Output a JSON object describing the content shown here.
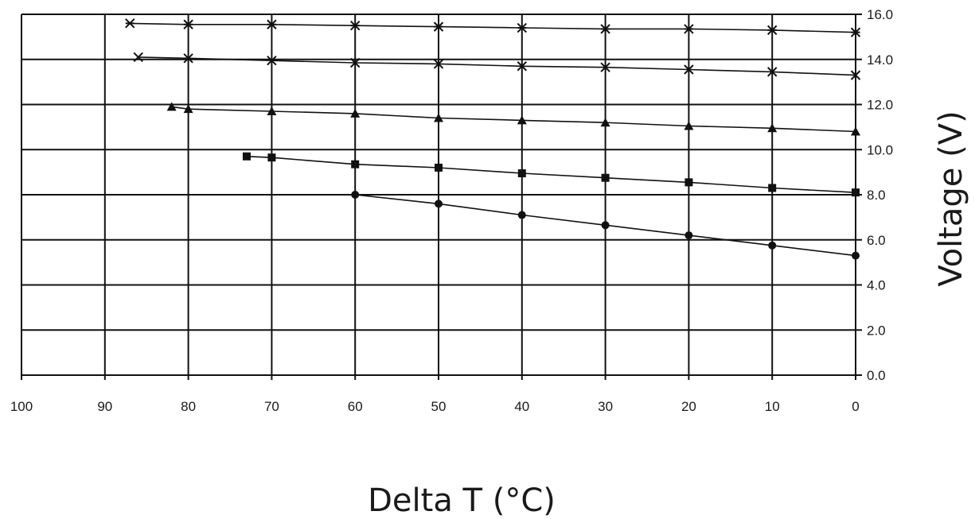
{
  "chart_data": {
    "type": "line",
    "xlabel": "Delta T (°C)",
    "ylabel": "Voltage (V)",
    "xlim": [
      100,
      0
    ],
    "ylim": [
      0,
      16
    ],
    "x_reversed": true,
    "y_axis_side": "right",
    "grid": true,
    "legend": "none",
    "x_ticks": [
      "100",
      "90",
      "80",
      "70",
      "60",
      "50",
      "40",
      "30",
      "20",
      "10",
      "0"
    ],
    "y_ticks": [
      "0.0",
      "2.0",
      "4.0",
      "6.0",
      "8.0",
      "10.0",
      "12.0",
      "14.0",
      "16.0"
    ],
    "series": [
      {
        "marker": "asterisk",
        "x": [
          87,
          80,
          70,
          60,
          50,
          40,
          30,
          20,
          10,
          0
        ],
        "y": [
          15.6,
          15.55,
          15.55,
          15.5,
          15.45,
          15.4,
          15.35,
          15.35,
          15.3,
          15.2
        ]
      },
      {
        "marker": "x",
        "x": [
          86,
          80,
          70,
          60,
          50,
          40,
          30,
          20,
          10,
          0
        ],
        "y": [
          14.1,
          14.05,
          13.95,
          13.85,
          13.8,
          13.7,
          13.65,
          13.55,
          13.45,
          13.3
        ]
      },
      {
        "marker": "triangle",
        "x": [
          82,
          80,
          70,
          60,
          50,
          40,
          30,
          20,
          10,
          0
        ],
        "y": [
          11.9,
          11.8,
          11.7,
          11.6,
          11.4,
          11.3,
          11.2,
          11.05,
          10.95,
          10.8
        ]
      },
      {
        "marker": "square",
        "x": [
          73,
          70,
          60,
          50,
          40,
          30,
          20,
          10,
          0
        ],
        "y": [
          9.7,
          9.65,
          9.35,
          9.2,
          8.95,
          8.75,
          8.55,
          8.3,
          8.1
        ]
      },
      {
        "marker": "circle",
        "x": [
          60,
          50,
          40,
          30,
          20,
          10,
          0
        ],
        "y": [
          8.0,
          7.6,
          7.1,
          6.65,
          6.2,
          5.75,
          5.3
        ]
      }
    ]
  }
}
